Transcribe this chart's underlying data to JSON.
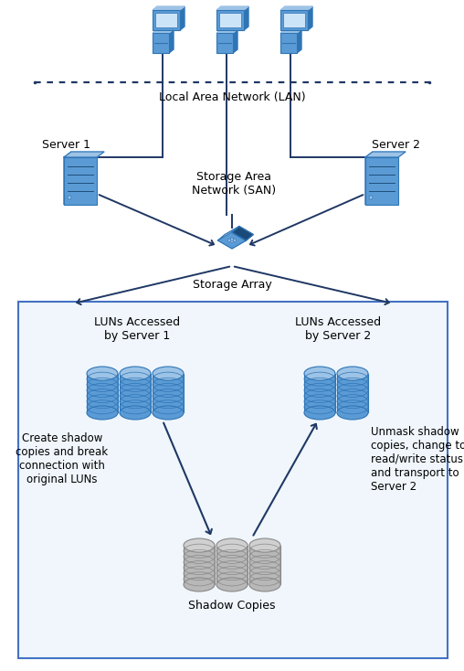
{
  "bg_color": "#ffffff",
  "border_color": "#4472c4",
  "line_color": "#1f3864",
  "arrow_color": "#1f3864",
  "text_color": "#000000",
  "lan_label": "Local Area Network (LAN)",
  "san_label": "Storage Area\nNetwork (SAN)",
  "storage_array_label": "Storage Array",
  "server1_label": "Server 1",
  "server2_label": "Server 2",
  "luns_server1_label": "LUNs Accessed\nby Server 1",
  "luns_server2_label": "LUNs Accessed\nby Server 2",
  "shadow_label": "Shadow Copies",
  "left_arrow_text": "Create shadow\ncopies and break\nconnection with\noriginal LUNs",
  "right_arrow_text": "Unmask shadow\ncopies, change to\nread/write status,\nand transport to\nServer 2",
  "figsize": [
    5.08,
    7.34
  ],
  "dpi": 100
}
